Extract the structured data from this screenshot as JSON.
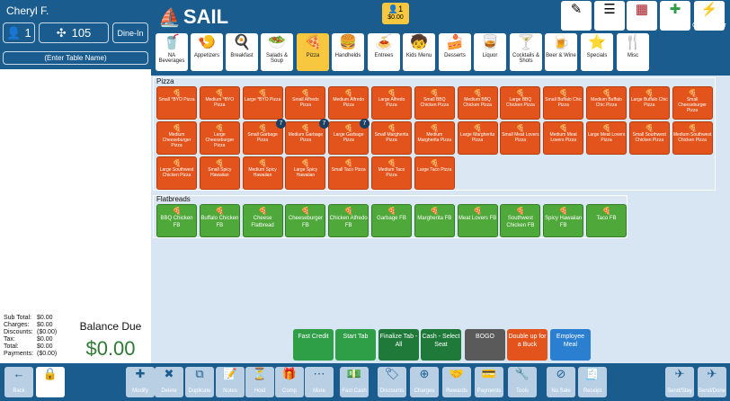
{
  "header": {
    "user": "Cheryl F.",
    "guests": "1",
    "table": "105",
    "order_type": "Dine-In",
    "table_name_placeholder": "(Enter Table Name)",
    "brand": "SAIL",
    "tip_badge_count": "1",
    "tip_badge_amount": "$0.00"
  },
  "top_actions": [
    {
      "label": "Edit Tips"
    },
    {
      "label": "Orders"
    },
    {
      "label": "Tables"
    },
    {
      "label": "New Order"
    },
    {
      "label": "Quick Order"
    }
  ],
  "categories": [
    {
      "label": "NA Beverages",
      "icon": "🥤"
    },
    {
      "label": "Appetizers",
      "icon": "🍤"
    },
    {
      "label": "Breakfast",
      "icon": "🍳"
    },
    {
      "label": "Salads & Soup",
      "icon": "🥗"
    },
    {
      "label": "Pizza",
      "icon": "🍕",
      "active": true
    },
    {
      "label": "Handhelds",
      "icon": "🍔"
    },
    {
      "label": "Entrees",
      "icon": "🍝"
    },
    {
      "label": "Kids Menu",
      "icon": "🧒"
    },
    {
      "label": "Desserts",
      "icon": "🍰"
    },
    {
      "label": "Liquor",
      "icon": "🥃"
    },
    {
      "label": "Cocktails & Shots",
      "icon": "🍸"
    },
    {
      "label": "Beer & Wine",
      "icon": "🍺"
    },
    {
      "label": "Specials",
      "icon": "⭐"
    },
    {
      "label": "Misc",
      "icon": "🍴"
    }
  ],
  "pizza": {
    "title": "Pizza",
    "items": [
      "Small *BYO Pizza",
      "Medium *BYO Pizza",
      "Large *BYO Pizza",
      "Small Alfredo Pizza",
      "Medium Alfredo Pizza",
      "Large Alfredo Pizza",
      "Small BBQ Chicken Pizza",
      "Medium BBQ Chicken Pizza",
      "Large BBQ Chicken Pizza",
      "Small Buffalo Chic Pizza",
      "Medium Buffalo Chic Pizza",
      "Large Buffalo Chic Pizza",
      "Small Cheeseburger Pizza",
      "Medium Cheeseburger Pizza",
      "Large Cheeseburger Pizza",
      "Small Garbage Pizza",
      "Medium Garbage Pizza",
      "Large Garbage Pizza",
      "Small Margherita Pizza",
      "Medium Margherita Pizza",
      "Large Margherita Pizza",
      "Small Meat Lovers Pizza",
      "Medium Meat Lovers Pizza",
      "Large Meat Lovers Pizza",
      "Small Southwest Chicken Pizza",
      "Medium Southwest Chicken Pizza",
      "Large Southwest Chicken Pizza",
      "Small Spicy Hawaiian",
      "Medium Spicy Hawaiian",
      "Large Spicy Hawaiian",
      "Small Taco Pizza",
      "Medium Taco Pizza",
      "Large Taco Pizza"
    ],
    "badges": [
      "7",
      "7",
      "7"
    ]
  },
  "flatbreads": {
    "title": "Flatbreads",
    "items": [
      "BBQ Chicken FB",
      "Buffalo Chicken FB",
      "Cheese Flatbread",
      "Cheeseburger FB",
      "Chicken Alfredo FB",
      "Garbage FB",
      "Margherita FB",
      "Meat Lovers FB",
      "Southwest Chicken FB",
      "Spicy Hawaiian FB",
      "Taco FB"
    ]
  },
  "actions": [
    {
      "label": "Fast Credit",
      "color": "#2e9e47"
    },
    {
      "label": "Start Tab",
      "color": "#2e9e47"
    },
    {
      "label": "Finalize Tab - All",
      "color": "#1f7a3a"
    },
    {
      "label": "Cash - Select Seat",
      "color": "#1f7a3a"
    },
    {
      "label": "BOGO",
      "color": "#5a5a5a"
    },
    {
      "label": "Double up for a Buck",
      "color": "#e2541c"
    },
    {
      "label": "Employee Meal",
      "color": "#2a7fd1"
    }
  ],
  "totals": {
    "sub_total_label": "Sub Total:",
    "sub_total": "$0.00",
    "charges_label": "Charges:",
    "charges": "$0.00",
    "discounts_label": "Discounts:",
    "discounts": "($0.00)",
    "tax_label": "Tax:",
    "tax": "$0.00",
    "total_label": "Total:",
    "total": "$0.00",
    "payments_label": "Payments:",
    "payments": "($0.00)",
    "balance_label": "Balance Due",
    "balance": "$0.00"
  },
  "bottom": [
    {
      "label": "Back",
      "icon": "←"
    },
    {
      "label": "Logout",
      "icon": "🔒"
    },
    {
      "label": "Modify",
      "icon": "✚"
    },
    {
      "label": "Delete",
      "icon": "✖"
    },
    {
      "label": "Duplicate",
      "icon": "⧉"
    },
    {
      "label": "Notes",
      "icon": "📝"
    },
    {
      "label": "Hold",
      "icon": "⏳"
    },
    {
      "label": "Comp",
      "icon": "🎁"
    },
    {
      "label": "More",
      "icon": "⋯"
    },
    {
      "label": "Fast Cash",
      "icon": "💵"
    },
    {
      "label": "Discounts",
      "icon": "🏷"
    },
    {
      "label": "Charges",
      "icon": "⊕"
    },
    {
      "label": "Rewards",
      "icon": "🤝"
    },
    {
      "label": "Payments",
      "icon": "💳"
    },
    {
      "label": "Tools",
      "icon": "🔧"
    },
    {
      "label": "No Sale",
      "icon": "⊘"
    },
    {
      "label": "Receipt",
      "icon": "🧾"
    },
    {
      "label": "Send/Stay",
      "icon": "✈"
    },
    {
      "label": "Send/Done",
      "icon": "✈"
    }
  ]
}
